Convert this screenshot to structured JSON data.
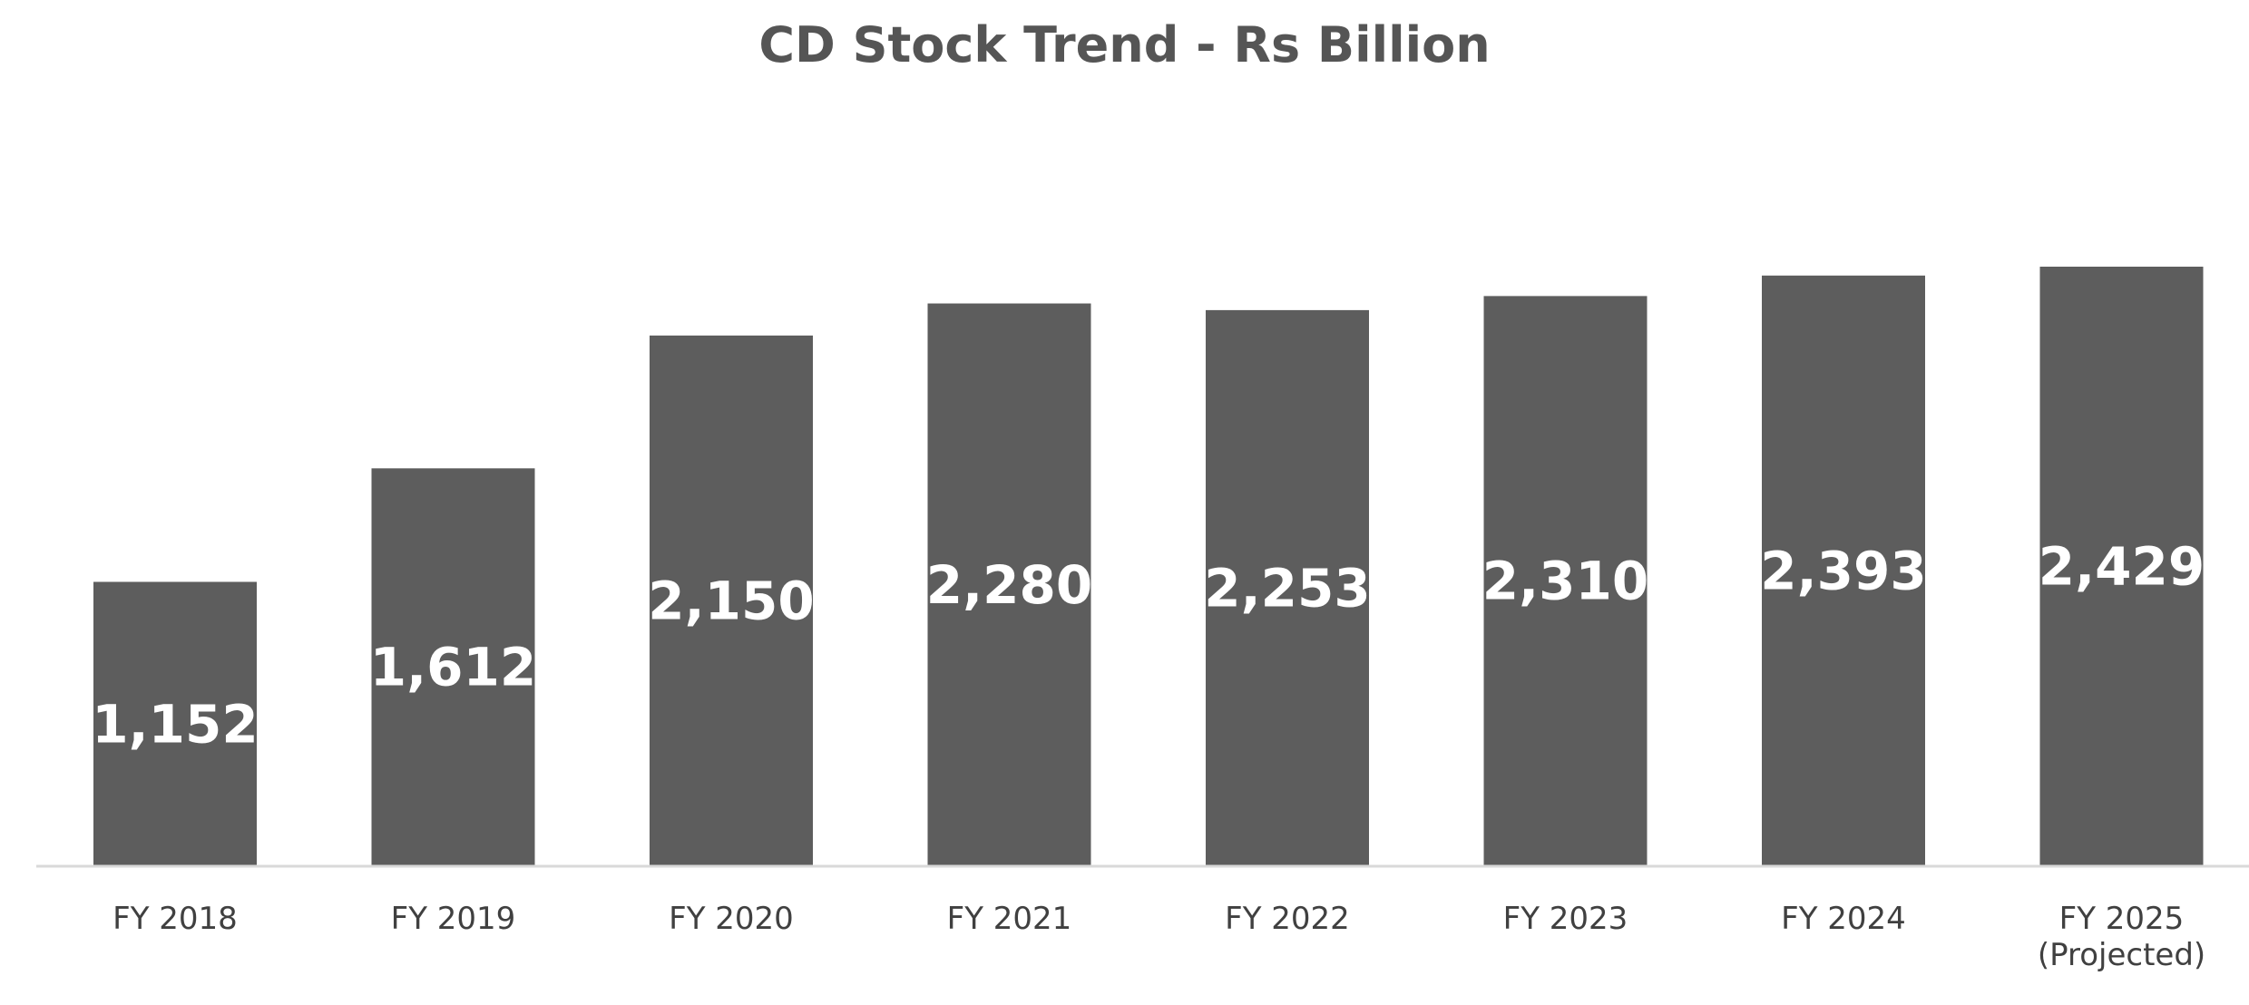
{
  "chart_data": {
    "type": "bar",
    "title": "CD Stock Trend - Rs Billion",
    "xlabel": "",
    "ylabel": "",
    "categories": [
      [
        "FY 2018"
      ],
      [
        "FY 2019"
      ],
      [
        "FY 2020"
      ],
      [
        "FY 2021"
      ],
      [
        "FY 2022"
      ],
      [
        "FY 2023"
      ],
      [
        "FY 2024"
      ],
      [
        "FY 2025",
        "(Projected)"
      ]
    ],
    "values": [
      1152,
      1612,
      2150,
      2280,
      2253,
      2310,
      2393,
      2429
    ],
    "data_labels": [
      "1,152",
      "1,612",
      "2,150",
      "2,280",
      "2,253",
      "2,310",
      "2,393",
      "2,429"
    ],
    "ylim": [
      0,
      2429
    ],
    "grid": false,
    "legend": "none",
    "colors": {
      "bar": "#5d5d5d",
      "data_label": "#ffffff",
      "title": "#555555",
      "tick_label": "#404040",
      "axis": "#d9d9d9"
    }
  }
}
